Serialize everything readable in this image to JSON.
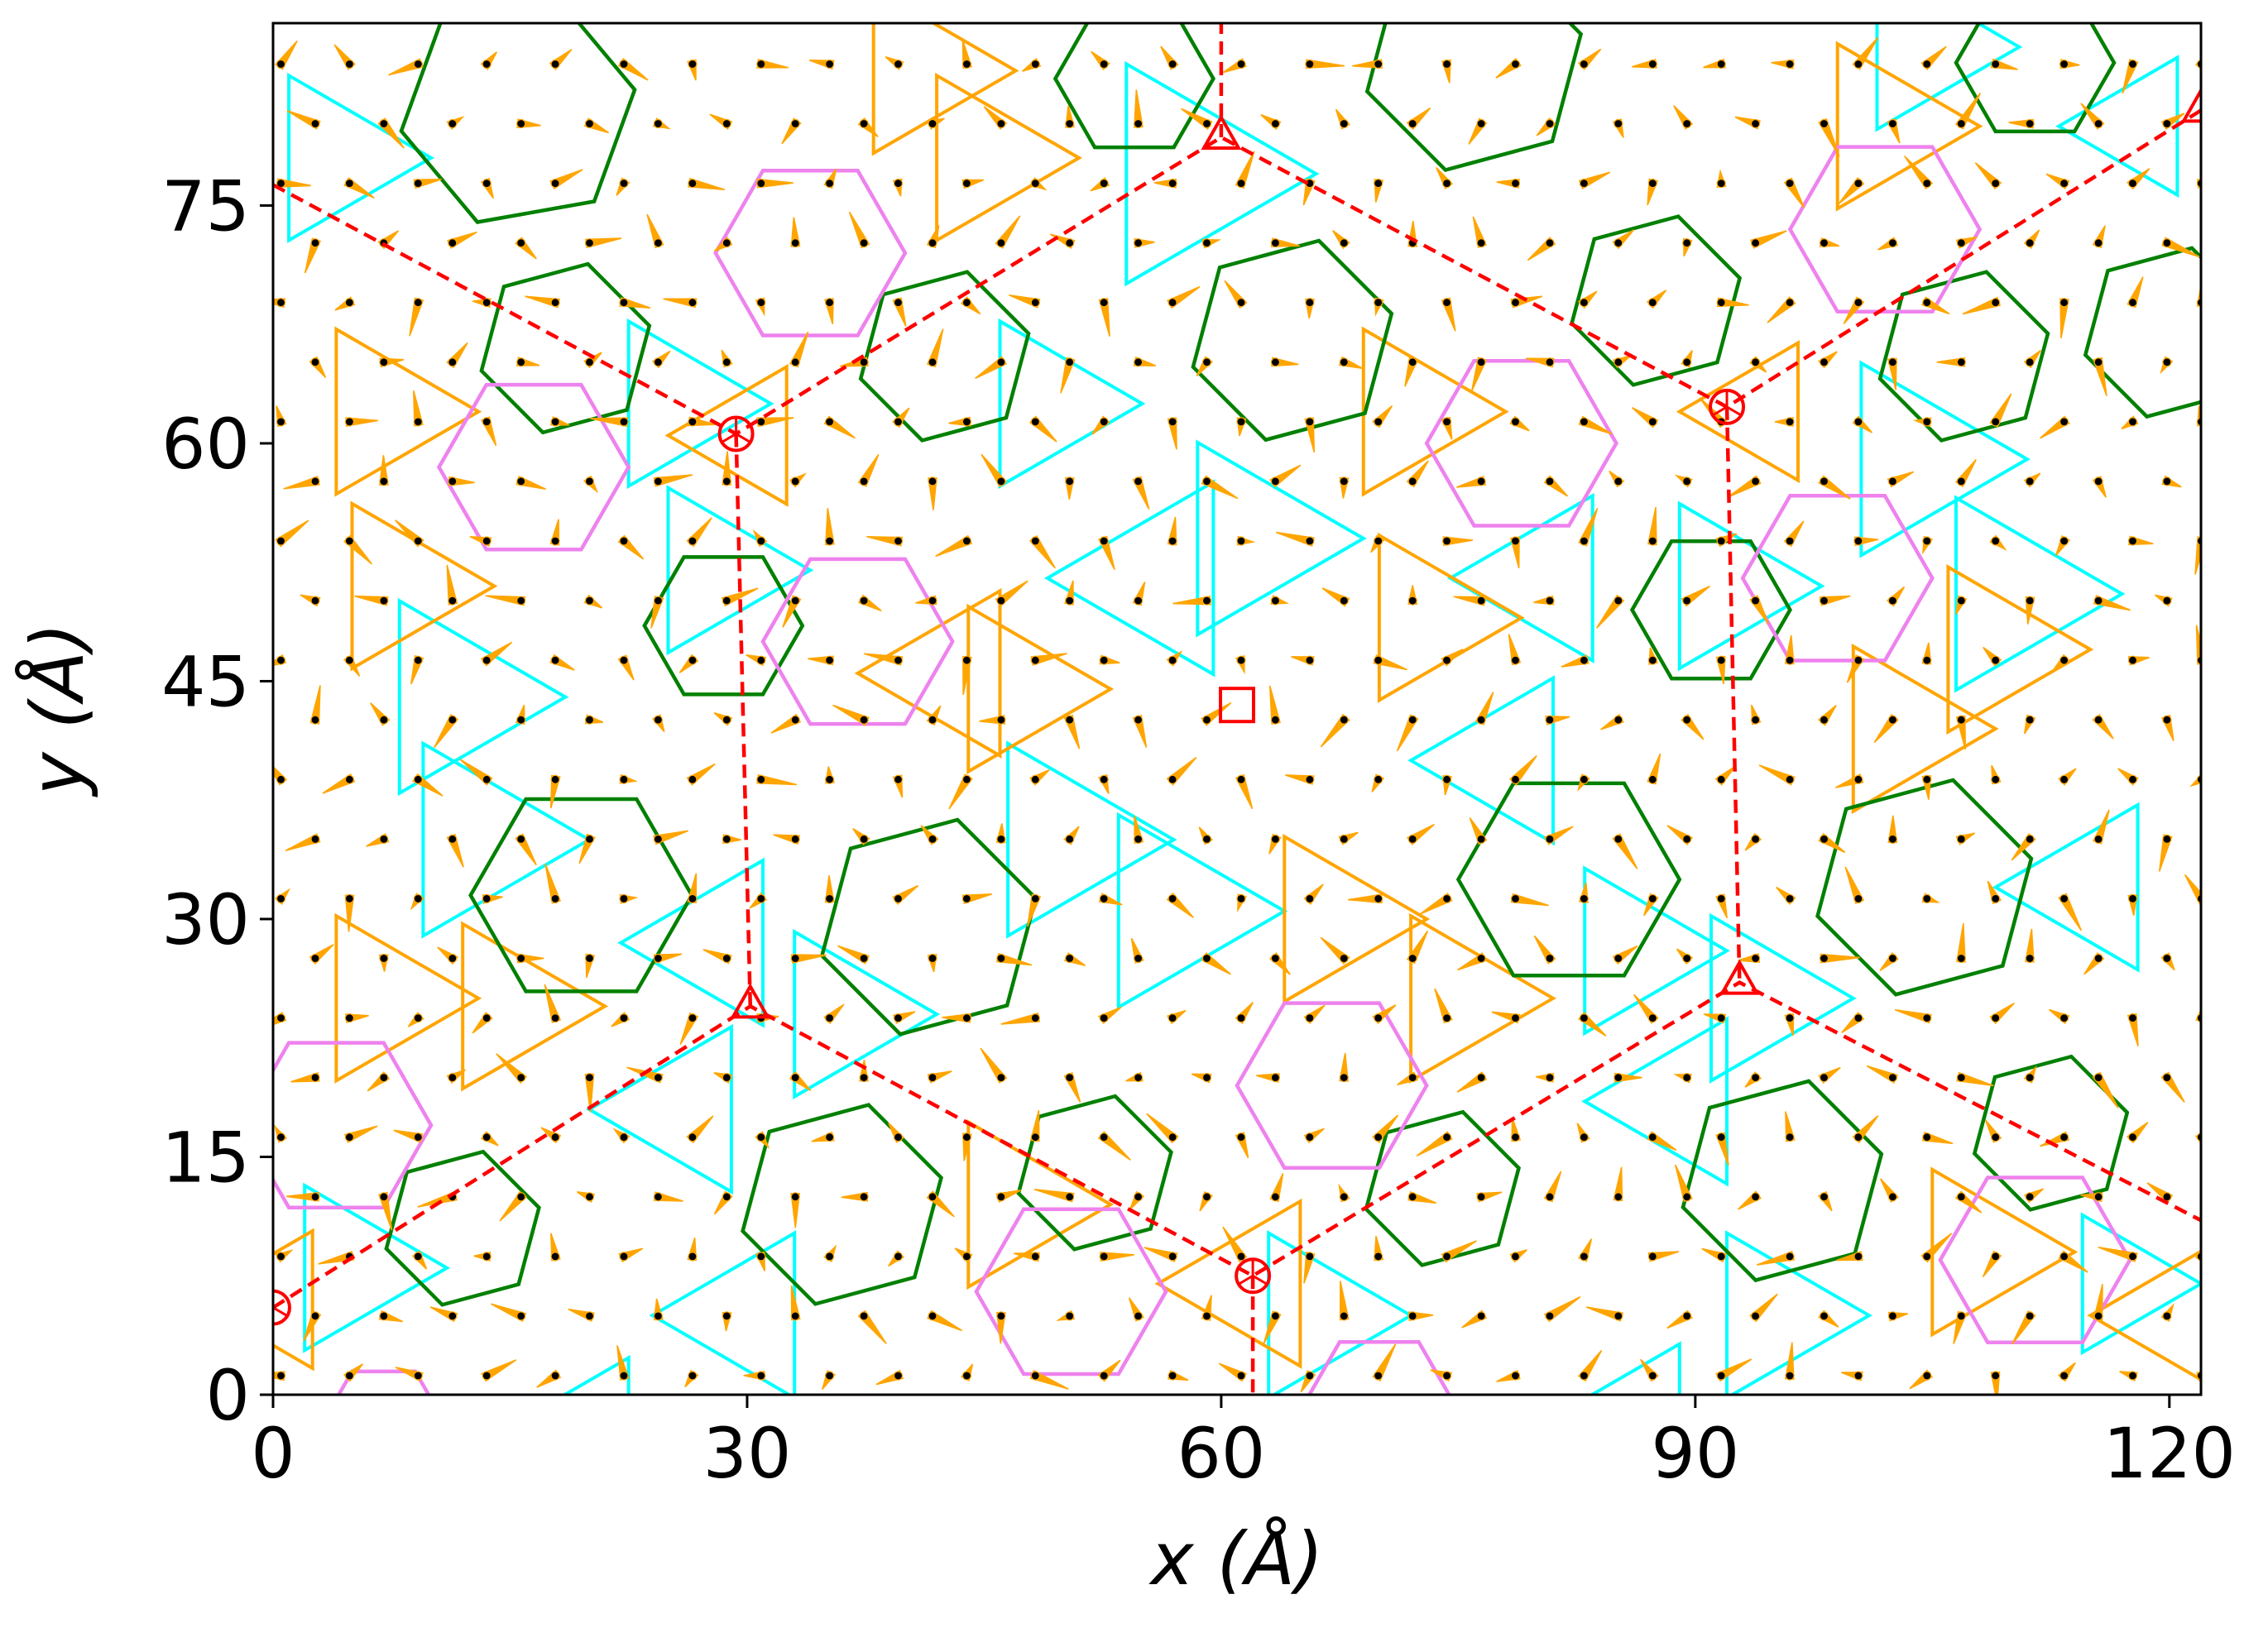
{
  "chart_data": {
    "type": "scatter",
    "xlabel": "x (Å)",
    "ylabel": "y (Å)",
    "xlim": [
      0,
      122
    ],
    "ylim": [
      0,
      86.5
    ],
    "xticks": [
      0,
      30,
      60,
      90,
      120
    ],
    "yticks": [
      0,
      15,
      30,
      45,
      60,
      75
    ],
    "xtick_labels": [
      "0",
      "30",
      "60",
      "90",
      "120"
    ],
    "ytick_labels": [
      "0",
      "15",
      "30",
      "45",
      "60",
      "75"
    ],
    "grid": false,
    "colors": {
      "atom": "#000000",
      "arrow": "#ffa500",
      "hexagon_large": "#008000",
      "hexagon_small": "#ee82ee",
      "triangle_a": "#00ffff",
      "triangle_b": "#ffa500",
      "supercell": "#ff0000"
    },
    "lattice": {
      "a1": [
        4.34,
        0
      ],
      "a2": [
        2.17,
        3.76
      ],
      "origin": [
        0.5,
        1.2
      ]
    },
    "supercell_path": [
      [
        0,
        5.5
      ],
      [
        30.2,
        24.5
      ],
      [
        62,
        7.5
      ],
      [
        92.8,
        26
      ],
      [
        122,
        11
      ]
    ],
    "supercell_upper_path": [
      [
        0,
        76.3
      ],
      [
        29.3,
        60.6
      ],
      [
        60,
        79.3
      ],
      [
        92,
        62.3
      ],
      [
        122,
        81
      ]
    ],
    "supercell_verticals": [
      [
        [
          29.3,
          60.6
        ],
        [
          30.2,
          24.5
        ]
      ],
      [
        [
          92,
          62.3
        ],
        [
          92.8,
          26
        ]
      ],
      [
        [
          60,
          79.3
        ],
        [
          60,
          86.5
        ]
      ],
      [
        [
          62,
          7.5
        ],
        [
          62,
          0
        ]
      ]
    ],
    "circle_markers": [
      [
        0,
        5.5
      ],
      [
        29.3,
        60.6
      ],
      [
        62,
        7.5
      ],
      [
        92,
        62.3
      ]
    ],
    "triangle_markers": [
      [
        30.2,
        24.5
      ],
      [
        60,
        79.3
      ],
      [
        92.8,
        26
      ],
      [
        122,
        81
      ]
    ],
    "square_markers": [
      [
        61,
        43.5
      ]
    ],
    "hexagons_green": [
      {
        "center": [
          15.5,
          81
        ],
        "r": 7.5,
        "rot": 10
      },
      {
        "center": [
          54.5,
          83
        ],
        "r": 5,
        "rot": 0
      },
      {
        "center": [
          76,
          84
        ],
        "r": 7,
        "rot": 15
      },
      {
        "center": [
          111.5,
          84
        ],
        "r": 5,
        "rot": 0
      },
      {
        "center": [
          18.5,
          66
        ],
        "r": 5.5,
        "rot": 15
      },
      {
        "center": [
          42.5,
          65.5
        ],
        "r": 5.5,
        "rot": 15
      },
      {
        "center": [
          64.5,
          66.5
        ],
        "r": 6.5,
        "rot": 15
      },
      {
        "center": [
          87.5,
          69
        ],
        "r": 5.5,
        "rot": 15
      },
      {
        "center": [
          107,
          65.5
        ],
        "r": 5.5,
        "rot": 15
      },
      {
        "center": [
          120,
          67
        ],
        "r": 5.5,
        "rot": 15
      },
      {
        "center": [
          28.5,
          48.5
        ],
        "r": 5,
        "rot": 0
      },
      {
        "center": [
          91,
          49.5
        ],
        "r": 5,
        "rot": 0
      },
      {
        "center": [
          19.5,
          31.5
        ],
        "r": 7,
        "rot": 0
      },
      {
        "center": [
          41.5,
          29.5
        ],
        "r": 7,
        "rot": 15
      },
      {
        "center": [
          82,
          32.5
        ],
        "r": 7,
        "rot": 0
      },
      {
        "center": [
          104.5,
          32
        ],
        "r": 7,
        "rot": 15
      },
      {
        "center": [
          12,
          10.5
        ],
        "r": 5,
        "rot": 15
      },
      {
        "center": [
          36,
          12
        ],
        "r": 6.5,
        "rot": 15
      },
      {
        "center": [
          52,
          14
        ],
        "r": 5,
        "rot": 15
      },
      {
        "center": [
          74,
          13
        ],
        "r": 5,
        "rot": 15
      },
      {
        "center": [
          95.5,
          13.5
        ],
        "r": 6.5,
        "rot": 15
      },
      {
        "center": [
          112.5,
          16.5
        ],
        "r": 5,
        "rot": 15
      }
    ],
    "hexagons_violet": [
      {
        "center": [
          34,
          72
        ],
        "r": 6
      },
      {
        "center": [
          102,
          73.5
        ],
        "r": 6
      },
      {
        "center": [
          16.5,
          58.5
        ],
        "r": 6
      },
      {
        "center": [
          79,
          60
        ],
        "r": 6
      },
      {
        "center": [
          37,
          47.5
        ],
        "r": 6
      },
      {
        "center": [
          99,
          51.5
        ],
        "r": 6
      },
      {
        "center": [
          67,
          19.5
        ],
        "r": 6
      },
      {
        "center": [
          4,
          17
        ],
        "r": 6
      },
      {
        "center": [
          50.5,
          6.5
        ],
        "r": 6
      },
      {
        "center": [
          111.5,
          8.5
        ],
        "r": 6
      },
      {
        "center": [
          70,
          -1
        ],
        "r": 5
      },
      {
        "center": [
          7,
          -2
        ],
        "r": 4
      }
    ],
    "triangles_cyan": [
      {
        "center": [
          58,
          77
        ],
        "r": 8,
        "dir": "right"
      },
      {
        "center": [
          4,
          78
        ],
        "r": 6,
        "dir": "right"
      },
      {
        "center": [
          104.5,
          85
        ],
        "r": 6,
        "dir": "right"
      },
      {
        "center": [
          118,
          80
        ],
        "r": 5,
        "dir": "left"
      },
      {
        "center": [
          25.5,
          62.5
        ],
        "r": 6,
        "dir": "right"
      },
      {
        "center": [
          49,
          62.5
        ],
        "r": 6,
        "dir": "right"
      },
      {
        "center": [
          104,
          59
        ],
        "r": 7,
        "dir": "right"
      },
      {
        "center": [
          56,
          51.5
        ],
        "r": 7,
        "dir": "left"
      },
      {
        "center": [
          62,
          54
        ],
        "r": 7,
        "dir": "right"
      },
      {
        "center": [
          28,
          52
        ],
        "r": 6,
        "dir": "right"
      },
      {
        "center": [
          80.5,
          51.5
        ],
        "r": 6,
        "dir": "left"
      },
      {
        "center": [
          92,
          51
        ],
        "r": 6,
        "dir": "right"
      },
      {
        "center": [
          11.5,
          44
        ],
        "r": 7,
        "dir": "right"
      },
      {
        "center": [
          110,
          50.5
        ],
        "r": 7,
        "dir": "right"
      },
      {
        "center": [
          13,
          35
        ],
        "r": 7,
        "dir": "right"
      },
      {
        "center": [
          78,
          40
        ],
        "r": 6,
        "dir": "left"
      },
      {
        "center": [
          50,
          35
        ],
        "r": 7,
        "dir": "right"
      },
      {
        "center": [
          57,
          30.5
        ],
        "r": 7,
        "dir": "right"
      },
      {
        "center": [
          86,
          28
        ],
        "r": 6,
        "dir": "right"
      },
      {
        "center": [
          115,
          32
        ],
        "r": 6,
        "dir": "left"
      },
      {
        "center": [
          28,
          28.5
        ],
        "r": 6,
        "dir": "left"
      },
      {
        "center": [
          36,
          24
        ],
        "r": 6,
        "dir": "right"
      },
      {
        "center": [
          94,
          25
        ],
        "r": 6,
        "dir": "right"
      },
      {
        "center": [
          26,
          18
        ],
        "r": 6,
        "dir": "left"
      },
      {
        "center": [
          89,
          18.5
        ],
        "r": 6,
        "dir": "left"
      },
      {
        "center": [
          5,
          8
        ],
        "r": 6,
        "dir": "right"
      },
      {
        "center": [
          30,
          5
        ],
        "r": 6,
        "dir": "left"
      },
      {
        "center": [
          66,
          5
        ],
        "r": 6,
        "dir": "right"
      },
      {
        "center": [
          95,
          5
        ],
        "r": 6,
        "dir": "right"
      },
      {
        "center": [
          117,
          7
        ],
        "r": 5,
        "dir": "right"
      },
      {
        "center": [
          20,
          -2
        ],
        "r": 5,
        "dir": "left"
      },
      {
        "center": [
          86,
          -2
        ],
        "r": 6,
        "dir": "left"
      }
    ],
    "triangles_orange": [
      {
        "center": [
          41,
          83.5
        ],
        "r": 6,
        "dir": "right"
      },
      {
        "center": [
          45,
          78
        ],
        "r": 6,
        "dir": "right"
      },
      {
        "center": [
          102,
          80
        ],
        "r": 6,
        "dir": "right"
      },
      {
        "center": [
          7,
          62
        ],
        "r": 6,
        "dir": "right"
      },
      {
        "center": [
          30,
          60.5
        ],
        "r": 5,
        "dir": "left"
      },
      {
        "center": [
          72,
          62
        ],
        "r": 6,
        "dir": "right"
      },
      {
        "center": [
          94,
          62
        ],
        "r": 5,
        "dir": "left"
      },
      {
        "center": [
          8,
          51
        ],
        "r": 6,
        "dir": "right"
      },
      {
        "center": [
          73,
          49
        ],
        "r": 6,
        "dir": "right"
      },
      {
        "center": [
          43,
          45.5
        ],
        "r": 6,
        "dir": "left"
      },
      {
        "center": [
          47,
          44.5
        ],
        "r": 6,
        "dir": "right"
      },
      {
        "center": [
          103,
          42
        ],
        "r": 6,
        "dir": "right"
      },
      {
        "center": [
          109,
          47
        ],
        "r": 6,
        "dir": "right"
      },
      {
        "center": [
          7,
          25
        ],
        "r": 6,
        "dir": "right"
      },
      {
        "center": [
          15,
          24.5
        ],
        "r": 6,
        "dir": "right"
      },
      {
        "center": [
          67,
          30
        ],
        "r": 6,
        "dir": "right"
      },
      {
        "center": [
          75,
          25
        ],
        "r": 6,
        "dir": "right"
      },
      {
        "center": [
          47,
          12
        ],
        "r": 6,
        "dir": "right"
      },
      {
        "center": [
          62,
          7
        ],
        "r": 6,
        "dir": "left"
      },
      {
        "center": [
          108,
          9
        ],
        "r": 6,
        "dir": "right"
      },
      {
        "center": [
          0,
          6
        ],
        "r": 5,
        "dir": "left"
      },
      {
        "center": [
          120,
          5
        ],
        "r": 5,
        "dir": "left"
      }
    ]
  }
}
